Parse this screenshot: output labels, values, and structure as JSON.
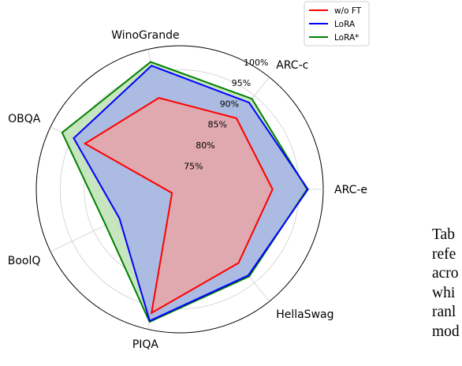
{
  "chart_data": {
    "type": "radar",
    "axes": [
      "ARC-e",
      "ARC-c",
      "WinoGrande",
      "OBQA",
      "BoolQ",
      "PIQA",
      "HellaSwag"
    ],
    "rlim": [
      70,
      100
    ],
    "radial_ticks": [
      75,
      80,
      85,
      90,
      95,
      100
    ],
    "radial_tick_labels": [
      "75%",
      "80%",
      "85%",
      "90%",
      "95%",
      "100%"
    ],
    "grid": true,
    "legend_position": "top-right",
    "series": [
      {
        "name": "w/o FT",
        "color": "#ff0000",
        "fill": "#e8a6a6",
        "values": [
          89.4,
          89.0,
          89.6,
          92.0,
          71.8,
          96.5,
          89.7
        ]
      },
      {
        "name": "LoRA",
        "color": "#0000ff",
        "fill": "#a6b4e8",
        "values": [
          96.8,
          93.2,
          96.5,
          94.6,
          84.0,
          98.2,
          93.0
        ]
      },
      {
        "name": "LoRA*",
        "color": "#008000",
        "fill": "#bde0b3",
        "values": [
          96.6,
          94.2,
          97.3,
          97.3,
          87.2,
          98.4,
          93.3
        ]
      }
    ]
  },
  "side_text": [
    "Tab",
    "refe",
    "acro",
    "whi",
    "ranl",
    "mod"
  ]
}
